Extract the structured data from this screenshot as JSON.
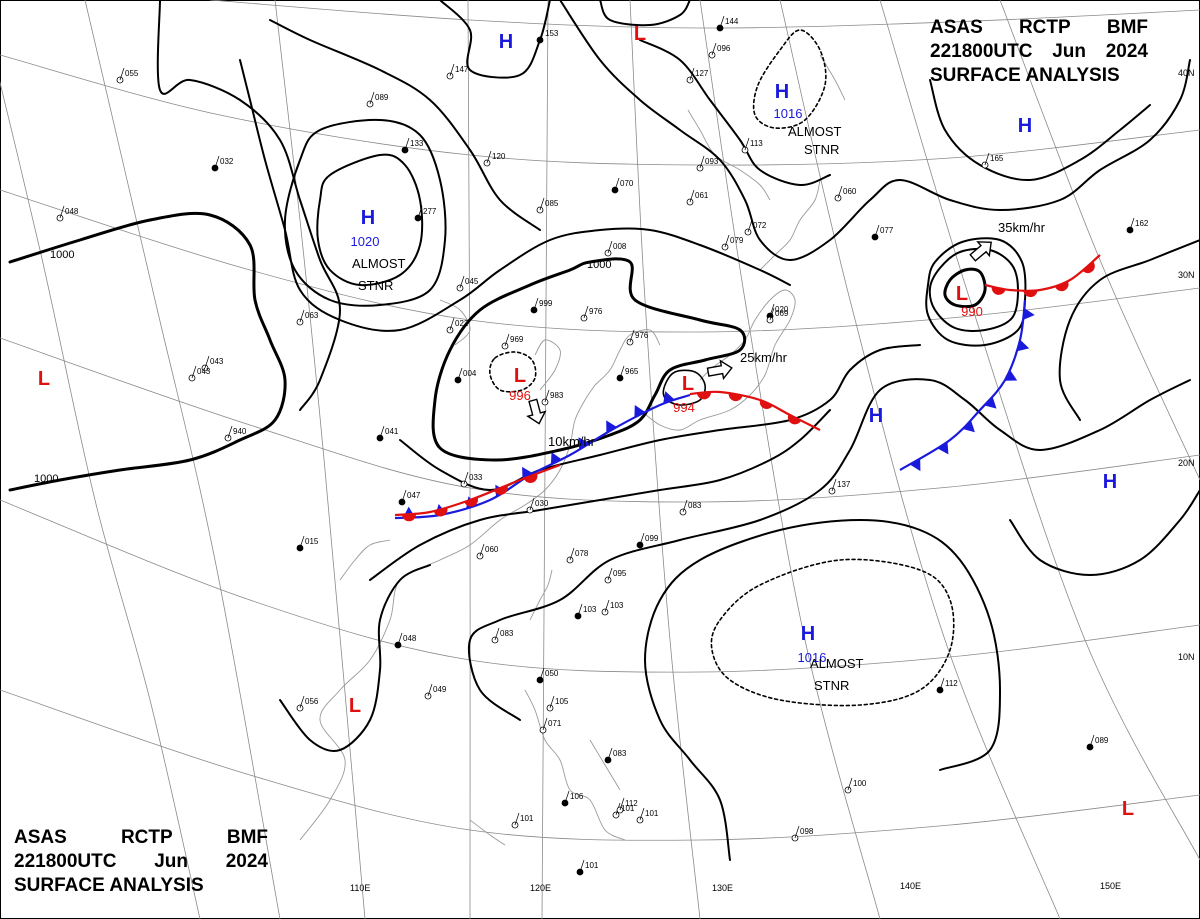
{
  "header": {
    "line1": [
      "ASAS",
      "RCTP",
      "BMF"
    ],
    "line2": [
      "221800UTC",
      "Jun",
      "2024"
    ],
    "line3": "SURFACE ANALYSIS"
  },
  "colors": {
    "high": "#1a1adc",
    "low": "#e01010",
    "warm_front": "#e01010",
    "cold_front": "#1a1adc",
    "isobar": "#000000",
    "grid": "#8a8a8a"
  },
  "longitude_labels": [
    "110E",
    "120E",
    "130E",
    "140E",
    "150E"
  ],
  "latitude_labels": [
    "40N",
    "30N",
    "20N",
    "10N"
  ],
  "pressure_centers": [
    {
      "type": "H",
      "value": "1020"
    },
    {
      "type": "H",
      "value": "1016"
    },
    {
      "type": "H",
      "value": "1016"
    },
    {
      "type": "H",
      "value": ""
    },
    {
      "type": "H",
      "value": ""
    },
    {
      "type": "H",
      "value": ""
    },
    {
      "type": "H",
      "value": ""
    },
    {
      "type": "L",
      "value": "990"
    },
    {
      "type": "L",
      "value": "996"
    },
    {
      "type": "L",
      "value": "994"
    },
    {
      "type": "L",
      "value": ""
    },
    {
      "type": "L",
      "value": ""
    },
    {
      "type": "L",
      "value": ""
    },
    {
      "type": "L",
      "value": ""
    }
  ],
  "isobar_labels": [
    "1000",
    "1000",
    "1000"
  ],
  "notes": [
    "ALMOST",
    "STNR",
    "ALMOST",
    "STNR",
    "ALMOST",
    "STNR"
  ],
  "motions": [
    "35km/hr",
    "25km/hr",
    "10km/hr"
  ],
  "station_values": [
    "153",
    "147",
    "089",
    "133",
    "120",
    "085",
    "070",
    "061",
    "096",
    "277",
    "045",
    "022",
    "999",
    "976",
    "976",
    "965",
    "969",
    "983",
    "004",
    "043",
    "063",
    "041",
    "940",
    "033",
    "047",
    "030",
    "060",
    "015",
    "078",
    "095",
    "103",
    "103",
    "083",
    "048",
    "056",
    "049",
    "050",
    "105",
    "071",
    "083",
    "101",
    "101",
    "106",
    "112",
    "101",
    "101",
    "098",
    "100",
    "089",
    "083",
    "137",
    "112",
    "165",
    "060",
    "077",
    "079",
    "072",
    "020",
    "093",
    "113",
    "144",
    "127",
    "055",
    "032",
    "048",
    "008",
    "099",
    "043",
    "069",
    "162"
  ]
}
